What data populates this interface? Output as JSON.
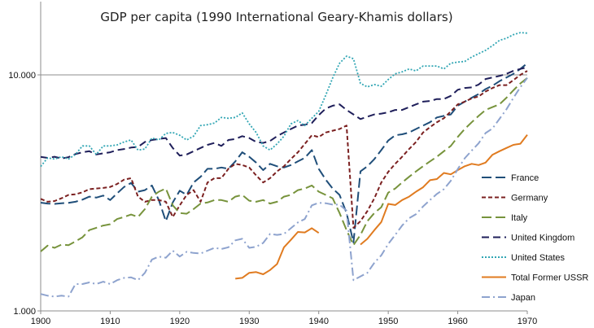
{
  "chart_data": {
    "type": "line",
    "title": "GDP per capita (1990 International Geary-Khamis dollars)",
    "xlabel": "",
    "ylabel": "",
    "y_scale": "log",
    "xlim": [
      1900,
      1970
    ],
    "ylim": [
      1000,
      20000
    ],
    "x_ticks": [
      1900,
      1910,
      1920,
      1930,
      1940,
      1950,
      1960,
      1970
    ],
    "y_ticks": [
      {
        "value": 1000,
        "label": "1.000"
      },
      {
        "value": 10000,
        "label": "10.000"
      }
    ],
    "gridlines": [
      10000
    ],
    "legend_position": "right",
    "series": [
      {
        "name": "France",
        "color": "#1F4E79",
        "dash": "long-dash",
        "x": [
          1900,
          1901,
          1902,
          1903,
          1904,
          1905,
          1906,
          1907,
          1908,
          1909,
          1910,
          1911,
          1912,
          1913,
          1914,
          1915,
          1916,
          1917,
          1918,
          1919,
          1920,
          1921,
          1922,
          1923,
          1924,
          1925,
          1926,
          1927,
          1928,
          1929,
          1930,
          1931,
          1932,
          1933,
          1934,
          1935,
          1936,
          1937,
          1938,
          1939,
          1940,
          1941,
          1942,
          1943,
          1944,
          1945,
          1946,
          1947,
          1948,
          1949,
          1950,
          1951,
          1952,
          1953,
          1954,
          1955,
          1956,
          1957,
          1958,
          1959,
          1960,
          1961,
          1962,
          1963,
          1964,
          1965,
          1966,
          1967,
          1968,
          1969,
          1970
        ],
        "values": [
          2876,
          2850,
          2840,
          2860,
          2870,
          2900,
          2960,
          3050,
          3020,
          3080,
          2950,
          3150,
          3350,
          3485,
          3200,
          3250,
          3400,
          2950,
          2400,
          2880,
          3230,
          3100,
          3500,
          3700,
          4000,
          4000,
          4050,
          4000,
          4300,
          4700,
          4500,
          4250,
          3950,
          4200,
          4100,
          4050,
          4150,
          4300,
          4450,
          4800,
          4000,
          3600,
          3300,
          3100,
          2600,
          1950,
          3900,
          4100,
          4400,
          4800,
          5270,
          5550,
          5600,
          5700,
          5900,
          6100,
          6300,
          6600,
          6700,
          6800,
          7400,
          7700,
          8000,
          8300,
          8700,
          9000,
          9400,
          9750,
          10100,
          10600,
          11200
        ]
      },
      {
        "name": "Germany",
        "color": "#7B2020",
        "dash": "short-dash",
        "x": [
          1900,
          1901,
          1902,
          1903,
          1904,
          1905,
          1906,
          1907,
          1908,
          1909,
          1910,
          1911,
          1912,
          1913,
          1914,
          1915,
          1916,
          1917,
          1918,
          1919,
          1920,
          1921,
          1922,
          1923,
          1924,
          1925,
          1926,
          1927,
          1928,
          1929,
          1930,
          1931,
          1932,
          1933,
          1934,
          1935,
          1936,
          1937,
          1938,
          1939,
          1940,
          1941,
          1942,
          1943,
          1944,
          1945,
          1946,
          1947,
          1948,
          1949,
          1950,
          1951,
          1952,
          1953,
          1954,
          1955,
          1956,
          1957,
          1958,
          1959,
          1960,
          1961,
          1962,
          1963,
          1964,
          1965,
          1966,
          1967,
          1968,
          1969,
          1970
        ],
        "values": [
          2985,
          2900,
          2920,
          3000,
          3100,
          3120,
          3180,
          3280,
          3300,
          3320,
          3350,
          3450,
          3600,
          3650,
          3050,
          2900,
          2950,
          2950,
          2900,
          2500,
          2800,
          3100,
          3250,
          2900,
          3500,
          3650,
          3650,
          4000,
          4200,
          4150,
          4050,
          3750,
          3500,
          3650,
          3900,
          4100,
          4400,
          4700,
          5100,
          5550,
          5450,
          5700,
          5800,
          5900,
          6100,
          2250,
          2400,
          2650,
          3000,
          3500,
          3880,
          4200,
          4500,
          4850,
          5200,
          5700,
          6000,
          6300,
          6550,
          7000,
          7500,
          7700,
          7950,
          8100,
          8500,
          8800,
          9050,
          9050,
          9500,
          10000,
          10400
        ]
      },
      {
        "name": "Italy",
        "color": "#77933C",
        "dash": "long-dash",
        "x": [
          1900,
          1901,
          1902,
          1903,
          1904,
          1905,
          1906,
          1907,
          1908,
          1909,
          1910,
          1911,
          1912,
          1913,
          1914,
          1915,
          1916,
          1917,
          1918,
          1919,
          1920,
          1921,
          1922,
          1923,
          1924,
          1925,
          1926,
          1927,
          1928,
          1929,
          1930,
          1931,
          1932,
          1933,
          1934,
          1935,
          1936,
          1937,
          1938,
          1939,
          1940,
          1941,
          1942,
          1943,
          1944,
          1945,
          1946,
          1947,
          1948,
          1949,
          1950,
          1951,
          1952,
          1953,
          1954,
          1955,
          1956,
          1957,
          1958,
          1959,
          1960,
          1961,
          1962,
          1963,
          1964,
          1965,
          1966,
          1967,
          1968,
          1969,
          1970
        ],
        "values": [
          1785,
          1890,
          1850,
          1910,
          1900,
          1970,
          2050,
          2200,
          2250,
          2300,
          2330,
          2450,
          2500,
          2560,
          2500,
          2700,
          3050,
          3200,
          3300,
          2800,
          2600,
          2580,
          2700,
          2850,
          2880,
          2950,
          2950,
          2900,
          3050,
          3100,
          2930,
          2900,
          2950,
          2850,
          2900,
          3050,
          3100,
          3250,
          3300,
          3400,
          3200,
          3100,
          3000,
          2600,
          2200,
          1900,
          2100,
          2400,
          2600,
          2750,
          3170,
          3300,
          3500,
          3700,
          3900,
          4100,
          4300,
          4500,
          4750,
          5000,
          5460,
          5900,
          6300,
          6700,
          7100,
          7300,
          7500,
          8000,
          8600,
          9200,
          9700
        ]
      },
      {
        "name": "United Kingdom",
        "color": "#1F1F5A",
        "dash": "dash",
        "x": [
          1900,
          1901,
          1902,
          1903,
          1904,
          1905,
          1906,
          1907,
          1908,
          1909,
          1910,
          1911,
          1912,
          1913,
          1914,
          1915,
          1916,
          1917,
          1918,
          1919,
          1920,
          1921,
          1922,
          1923,
          1924,
          1925,
          1926,
          1927,
          1928,
          1929,
          1930,
          1931,
          1932,
          1933,
          1934,
          1935,
          1936,
          1937,
          1938,
          1939,
          1940,
          1941,
          1942,
          1943,
          1944,
          1945,
          1946,
          1947,
          1948,
          1949,
          1950,
          1951,
          1952,
          1953,
          1954,
          1955,
          1956,
          1957,
          1958,
          1959,
          1960,
          1961,
          1962,
          1963,
          1964,
          1965,
          1966,
          1967,
          1968,
          1969,
          1970
        ],
        "values": [
          4492,
          4450,
          4500,
          4420,
          4480,
          4620,
          4700,
          4750,
          4600,
          4650,
          4700,
          4800,
          4850,
          4920,
          4950,
          5200,
          5300,
          5350,
          5400,
          4900,
          4550,
          4600,
          4750,
          4900,
          5050,
          5150,
          5000,
          5300,
          5350,
          5500,
          5400,
          5200,
          5150,
          5250,
          5500,
          5700,
          5900,
          6100,
          6150,
          6250,
          6750,
          7200,
          7400,
          7500,
          7100,
          6800,
          6500,
          6650,
          6800,
          6850,
          6940,
          7100,
          7100,
          7300,
          7500,
          7700,
          7750,
          7900,
          7900,
          8150,
          8650,
          8800,
          8850,
          9100,
          9600,
          9750,
          9900,
          10100,
          10400,
          10600,
          10770
        ]
      },
      {
        "name": "United States",
        "color": "#31A6B4",
        "dash": "dot",
        "x": [
          1900,
          1901,
          1902,
          1903,
          1904,
          1905,
          1906,
          1907,
          1908,
          1909,
          1910,
          1911,
          1912,
          1913,
          1914,
          1915,
          1916,
          1917,
          1918,
          1919,
          1920,
          1921,
          1922,
          1923,
          1924,
          1925,
          1926,
          1927,
          1928,
          1929,
          1930,
          1931,
          1932,
          1933,
          1934,
          1935,
          1936,
          1937,
          1938,
          1939,
          1940,
          1941,
          1942,
          1943,
          1944,
          1945,
          1946,
          1947,
          1948,
          1949,
          1950,
          1951,
          1952,
          1953,
          1954,
          1955,
          1956,
          1957,
          1958,
          1959,
          1960,
          1961,
          1962,
          1963,
          1964,
          1965,
          1966,
          1967,
          1968,
          1969,
          1970
        ],
        "values": [
          4091,
          4450,
          4400,
          4500,
          4400,
          4600,
          5000,
          5000,
          4600,
          5000,
          5000,
          5050,
          5200,
          5300,
          4800,
          4850,
          5400,
          5300,
          5650,
          5700,
          5550,
          5300,
          5500,
          6100,
          6150,
          6250,
          6600,
          6550,
          6600,
          6900,
          6200,
          5700,
          5000,
          4800,
          5100,
          5500,
          6200,
          6400,
          6100,
          6550,
          7000,
          8200,
          9700,
          11200,
          12000,
          11700,
          9200,
          8900,
          9100,
          8950,
          9560,
          10100,
          10300,
          10600,
          10400,
          10900,
          10900,
          10900,
          10600,
          11200,
          11330,
          11400,
          11900,
          12300,
          12700,
          13300,
          14000,
          14300,
          14800,
          15100,
          15030
        ]
      },
      {
        "name": "Total Former USSR",
        "color": "#E07B20",
        "dash": "solid",
        "x": [
          1928,
          1929,
          1930,
          1931,
          1932,
          1933,
          1934,
          1935,
          1936,
          1937,
          1938,
          1939,
          1940,
          null,
          1946,
          1947,
          1948,
          1949,
          1950,
          1951,
          1952,
          1953,
          1954,
          1955,
          1956,
          1957,
          1958,
          1959,
          1960,
          1961,
          1962,
          1963,
          1964,
          1965,
          1966,
          1967,
          1968,
          1969,
          1970
        ],
        "values": [
          1370,
          1380,
          1450,
          1460,
          1430,
          1490,
          1580,
          1860,
          2000,
          2160,
          2150,
          2240,
          2140,
          null,
          1910,
          2020,
          2200,
          2380,
          2840,
          2810,
          2950,
          3050,
          3200,
          3340,
          3580,
          3620,
          3840,
          3790,
          3950,
          4100,
          4200,
          4150,
          4250,
          4590,
          4750,
          4900,
          5050,
          5110,
          5575
        ]
      },
      {
        "name": "Japan",
        "color": "#8EA3CE",
        "dash": "dash-dot",
        "x": [
          1900,
          1901,
          1902,
          1903,
          1904,
          1905,
          1906,
          1907,
          1908,
          1909,
          1910,
          1911,
          1912,
          1913,
          1914,
          1915,
          1916,
          1917,
          1918,
          1919,
          1920,
          1921,
          1922,
          1923,
          1924,
          1925,
          1926,
          1927,
          1928,
          1929,
          1930,
          1931,
          1932,
          1933,
          1934,
          1935,
          1936,
          1937,
          1938,
          1939,
          1940,
          1941,
          1942,
          1943,
          1944,
          1945,
          1946,
          1947,
          1948,
          1949,
          1950,
          1951,
          1952,
          1953,
          1954,
          1955,
          1956,
          1957,
          1958,
          1959,
          1960,
          1961,
          1962,
          1963,
          1964,
          1965,
          1966,
          1967,
          1968,
          1969,
          1970
        ],
        "values": [
          1180,
          1160,
          1150,
          1160,
          1150,
          1300,
          1300,
          1320,
          1300,
          1330,
          1300,
          1350,
          1380,
          1387,
          1350,
          1450,
          1650,
          1700,
          1680,
          1800,
          1700,
          1780,
          1760,
          1750,
          1800,
          1850,
          1830,
          1860,
          1990,
          2020,
          1850,
          1870,
          1940,
          2120,
          2100,
          2120,
          2240,
          2370,
          2450,
          2800,
          2870,
          2860,
          2820,
          2820,
          2660,
          1350,
          1400,
          1450,
          1600,
          1720,
          1920,
          2100,
          2300,
          2470,
          2570,
          2770,
          2950,
          3130,
          3280,
          3560,
          3990,
          4430,
          4780,
          5130,
          5670,
          5930,
          6510,
          7150,
          7980,
          8870,
          9710
        ]
      }
    ]
  }
}
